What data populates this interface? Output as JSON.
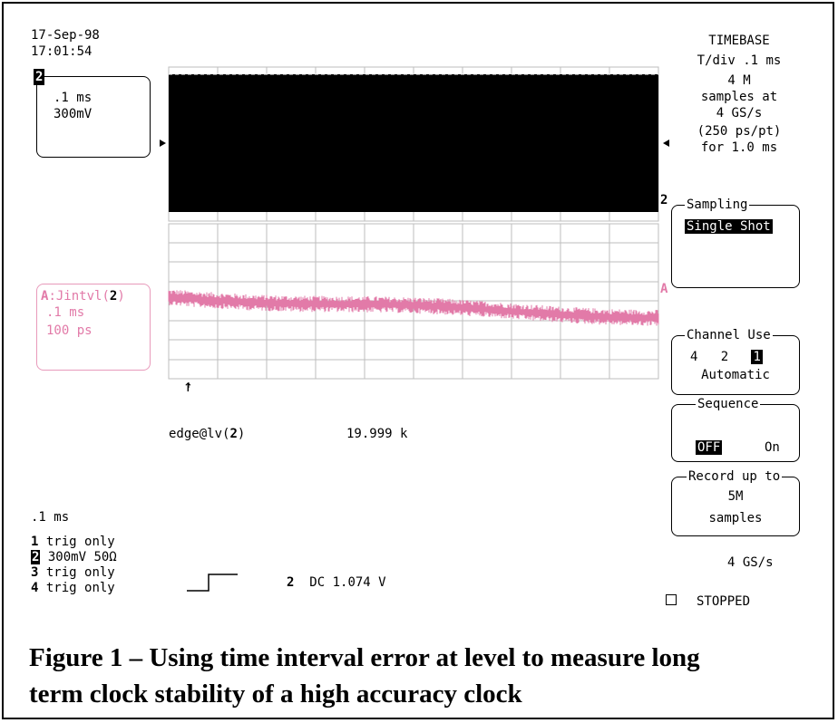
{
  "header": {
    "date": "17-Sep-98",
    "time": "17:01:54"
  },
  "trace2": {
    "badge": "2",
    "timediv": ".1 ms",
    "voltdiv": "300mV",
    "marker": "2"
  },
  "traceA": {
    "badge": "A",
    "name": ":Jintvl(",
    "source": "2",
    "close": ")",
    "timediv": ".1 ms",
    "scale": "100 ps",
    "marker": "A"
  },
  "timebase": {
    "title": "TIMEBASE",
    "tdiv": "T/div .1 ms",
    "samples": "4 M",
    "samples_at": "samples at",
    "rate": "4 GS/s",
    "per_pt": "(250 ps/pt)",
    "for": "for  1.0 ms"
  },
  "menus": {
    "sampling": {
      "title": "Sampling",
      "value": "Single Shot"
    },
    "channel_use": {
      "title": "Channel Use",
      "c4": "4",
      "c2": "2",
      "c1": "1",
      "mode": "Automatic"
    },
    "sequence": {
      "title": "Sequence",
      "off": "OFF",
      "on": "On"
    },
    "record": {
      "title": "Record up to",
      "value": "5M",
      "unit": "samples"
    }
  },
  "measurement": {
    "label": "edge@lv(",
    "source": "2",
    "close": ")",
    "value": "19.999 k"
  },
  "bottom": {
    "timediv": ".1 ms",
    "channels": [
      {
        "num": "1",
        "text": "trig only"
      },
      {
        "num": "2",
        "text": "300mV  50Ω"
      },
      {
        "num": "3",
        "text": "trig only"
      },
      {
        "num": "4",
        "text": "trig only"
      }
    ],
    "trigger_channel": "2",
    "trigger_coupling": "DC 1.074 V",
    "sample_rate": "4 GS/s",
    "status": "STOPPED"
  },
  "colors": {
    "trace_a": "#e27aa8",
    "grid": "#bdbdbd"
  },
  "caption": {
    "line1": "Figure 1 – Using time interval error at level to measure long",
    "line2": "term clock stability of a high accuracy clock"
  }
}
